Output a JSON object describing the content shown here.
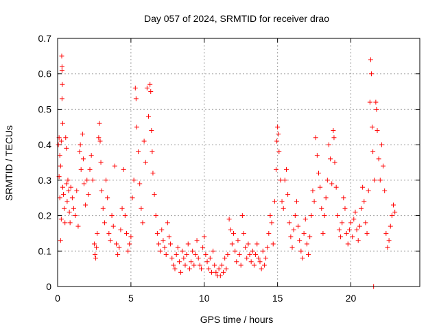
{
  "chart_data": {
    "type": "scatter",
    "title": "Day 057 of 2024, SRMTID for receiver drao",
    "xlabel": "GPS time / hours",
    "ylabel": "SRMTID / TECUs",
    "xlim": [
      0,
      24.7
    ],
    "ylim": [
      0,
      0.7
    ],
    "x_ticks": [
      0,
      5,
      10,
      15,
      20
    ],
    "x_tick_labels": [
      "0",
      "5",
      "10",
      "15",
      "20"
    ],
    "y_ticks": [
      0,
      0.1,
      0.2,
      0.3,
      0.4,
      0.5,
      0.6,
      0.7
    ],
    "y_tick_labels": [
      "0",
      "0.1",
      "0.2",
      "0.3",
      "0.4",
      "0.5",
      "0.6",
      "0.7"
    ],
    "grid": true,
    "marker": "+",
    "color": "#ff0000",
    "series": [
      {
        "name": "SRMTID",
        "points": [
          [
            0.05,
            0.4
          ],
          [
            0.1,
            0.42
          ],
          [
            0.1,
            0.31
          ],
          [
            0.15,
            0.37
          ],
          [
            0.15,
            0.25
          ],
          [
            0.2,
            0.13
          ],
          [
            0.2,
            0.34
          ],
          [
            0.25,
            0.41
          ],
          [
            0.25,
            0.19
          ],
          [
            0.28,
            0.65
          ],
          [
            0.3,
            0.62
          ],
          [
            0.3,
            0.61
          ],
          [
            0.32,
            0.57
          ],
          [
            0.3,
            0.53
          ],
          [
            0.35,
            0.46
          ],
          [
            0.35,
            0.28
          ],
          [
            0.4,
            0.26
          ],
          [
            0.45,
            0.22
          ],
          [
            0.5,
            0.18
          ],
          [
            0.55,
            0.42
          ],
          [
            0.6,
            0.39
          ],
          [
            0.6,
            0.29
          ],
          [
            0.65,
            0.24
          ],
          [
            0.7,
            0.3
          ],
          [
            0.75,
            0.27
          ],
          [
            0.8,
            0.21
          ],
          [
            0.85,
            0.18
          ],
          [
            0.9,
            0.28
          ],
          [
            1.0,
            0.25
          ],
          [
            1.1,
            0.22
          ],
          [
            1.2,
            0.2
          ],
          [
            1.3,
            0.27
          ],
          [
            1.4,
            0.17
          ],
          [
            1.5,
            0.38
          ],
          [
            1.55,
            0.4
          ],
          [
            1.6,
            0.33
          ],
          [
            1.7,
            0.43
          ],
          [
            1.75,
            0.36
          ],
          [
            1.8,
            0.29
          ],
          [
            1.9,
            0.23
          ],
          [
            2.0,
            0.3
          ],
          [
            2.1,
            0.26
          ],
          [
            2.2,
            0.33
          ],
          [
            2.3,
            0.37
          ],
          [
            2.4,
            0.3
          ],
          [
            2.5,
            0.12
          ],
          [
            2.55,
            0.09
          ],
          [
            2.6,
            0.08
          ],
          [
            2.65,
            0.11
          ],
          [
            2.7,
            0.15
          ],
          [
            2.8,
            0.42
          ],
          [
            2.85,
            0.46
          ],
          [
            2.9,
            0.41
          ],
          [
            2.95,
            0.35
          ],
          [
            3.0,
            0.27
          ],
          [
            3.1,
            0.22
          ],
          [
            3.2,
            0.18
          ],
          [
            3.3,
            0.3
          ],
          [
            3.4,
            0.25
          ],
          [
            3.5,
            0.15
          ],
          [
            3.6,
            0.13
          ],
          [
            3.7,
            0.2
          ],
          [
            3.8,
            0.17
          ],
          [
            3.9,
            0.34
          ],
          [
            4.0,
            0.12
          ],
          [
            4.1,
            0.09
          ],
          [
            4.2,
            0.11
          ],
          [
            4.3,
            0.16
          ],
          [
            4.4,
            0.22
          ],
          [
            4.5,
            0.33
          ],
          [
            4.6,
            0.2
          ],
          [
            4.7,
            0.15
          ],
          [
            4.8,
            0.1
          ],
          [
            4.9,
            0.12
          ],
          [
            5.0,
            0.14
          ],
          [
            5.1,
            0.25
          ],
          [
            5.2,
            0.3
          ],
          [
            5.3,
            0.56
          ],
          [
            5.35,
            0.53
          ],
          [
            5.4,
            0.45
          ],
          [
            5.5,
            0.38
          ],
          [
            5.6,
            0.29
          ],
          [
            5.7,
            0.22
          ],
          [
            5.8,
            0.18
          ],
          [
            5.9,
            0.41
          ],
          [
            6.0,
            0.35
          ],
          [
            6.1,
            0.56
          ],
          [
            6.2,
            0.48
          ],
          [
            6.3,
            0.57
          ],
          [
            6.35,
            0.55
          ],
          [
            6.4,
            0.44
          ],
          [
            6.45,
            0.38
          ],
          [
            6.5,
            0.32
          ],
          [
            6.6,
            0.26
          ],
          [
            6.7,
            0.2
          ],
          [
            6.8,
            0.15
          ],
          [
            6.9,
            0.12
          ],
          [
            7.0,
            0.1
          ],
          [
            7.1,
            0.16
          ],
          [
            7.2,
            0.13
          ],
          [
            7.3,
            0.11
          ],
          [
            7.4,
            0.09
          ],
          [
            7.5,
            0.18
          ],
          [
            7.6,
            0.14
          ],
          [
            7.7,
            0.12
          ],
          [
            7.8,
            0.08
          ],
          [
            7.9,
            0.06
          ],
          [
            8.0,
            0.05
          ],
          [
            8.1,
            0.09
          ],
          [
            8.2,
            0.11
          ],
          [
            8.3,
            0.07
          ],
          [
            8.4,
            0.04
          ],
          [
            8.5,
            0.1
          ],
          [
            8.6,
            0.08
          ],
          [
            8.7,
            0.06
          ],
          [
            8.8,
            0.09
          ],
          [
            8.9,
            0.12
          ],
          [
            9.0,
            0.05
          ],
          [
            9.1,
            0.07
          ],
          [
            9.2,
            0.1
          ],
          [
            9.3,
            0.06
          ],
          [
            9.4,
            0.09
          ],
          [
            9.5,
            0.13
          ],
          [
            9.6,
            0.08
          ],
          [
            9.7,
            0.06
          ],
          [
            9.8,
            0.05
          ],
          [
            9.9,
            0.11
          ],
          [
            10.0,
            0.14
          ],
          [
            10.1,
            0.09
          ],
          [
            10.2,
            0.07
          ],
          [
            10.3,
            0.05
          ],
          [
            10.4,
            0.08
          ],
          [
            10.5,
            0.04
          ],
          [
            10.6,
            0.1
          ],
          [
            10.7,
            0.06
          ],
          [
            10.8,
            0.04
          ],
          [
            10.9,
            0.03
          ],
          [
            11.0,
            0.05
          ],
          [
            11.1,
            0.03
          ],
          [
            11.2,
            0.06
          ],
          [
            11.3,
            0.04
          ],
          [
            11.4,
            0.08
          ],
          [
            11.5,
            0.05
          ],
          [
            11.6,
            0.09
          ],
          [
            11.7,
            0.19
          ],
          [
            11.8,
            0.16
          ],
          [
            11.9,
            0.12
          ],
          [
            12.0,
            0.15
          ],
          [
            12.1,
            0.1
          ],
          [
            12.2,
            0.07
          ],
          [
            12.3,
            0.13
          ],
          [
            12.4,
            0.09
          ],
          [
            12.5,
            0.06
          ],
          [
            12.6,
            0.2
          ],
          [
            12.7,
            0.15
          ],
          [
            12.8,
            0.11
          ],
          [
            12.9,
            0.08
          ],
          [
            13.0,
            0.12
          ],
          [
            13.1,
            0.09
          ],
          [
            13.2,
            0.07
          ],
          [
            13.3,
            0.1
          ],
          [
            13.4,
            0.06
          ],
          [
            13.5,
            0.09
          ],
          [
            13.6,
            0.12
          ],
          [
            13.7,
            0.08
          ],
          [
            13.8,
            0.07
          ],
          [
            13.9,
            0.05
          ],
          [
            14.0,
            0.1
          ],
          [
            14.1,
            0.06
          ],
          [
            14.2,
            0.08
          ],
          [
            14.3,
            0.11
          ],
          [
            14.4,
            0.15
          ],
          [
            14.5,
            0.2
          ],
          [
            14.6,
            0.18
          ],
          [
            14.7,
            0.12
          ],
          [
            14.8,
            0.24
          ],
          [
            14.9,
            0.33
          ],
          [
            14.95,
            0.41
          ],
          [
            15.0,
            0.45
          ],
          [
            15.05,
            0.43
          ],
          [
            15.1,
            0.38
          ],
          [
            15.2,
            0.3
          ],
          [
            15.3,
            0.24
          ],
          [
            15.4,
            0.22
          ],
          [
            15.5,
            0.3
          ],
          [
            15.6,
            0.33
          ],
          [
            15.7,
            0.26
          ],
          [
            15.8,
            0.18
          ],
          [
            15.9,
            0.14
          ],
          [
            16.0,
            0.11
          ],
          [
            16.1,
            0.16
          ],
          [
            16.2,
            0.2
          ],
          [
            16.3,
            0.24
          ],
          [
            16.4,
            0.17
          ],
          [
            16.5,
            0.13
          ],
          [
            16.6,
            0.1
          ],
          [
            16.7,
            0.08
          ],
          [
            16.8,
            0.15
          ],
          [
            16.9,
            0.19
          ],
          [
            17.0,
            0.12
          ],
          [
            17.1,
            0.09
          ],
          [
            17.2,
            0.14
          ],
          [
            17.3,
            0.2
          ],
          [
            17.4,
            0.27
          ],
          [
            17.5,
            0.24
          ],
          [
            17.6,
            0.42
          ],
          [
            17.7,
            0.37
          ],
          [
            17.8,
            0.32
          ],
          [
            17.9,
            0.28
          ],
          [
            18.0,
            0.22
          ],
          [
            18.1,
            0.15
          ],
          [
            18.2,
            0.2
          ],
          [
            18.3,
            0.25
          ],
          [
            18.4,
            0.3
          ],
          [
            18.5,
            0.4
          ],
          [
            18.6,
            0.36
          ],
          [
            18.7,
            0.29
          ],
          [
            18.8,
            0.44
          ],
          [
            18.85,
            0.42
          ],
          [
            18.9,
            0.35
          ],
          [
            19.0,
            0.28
          ],
          [
            19.1,
            0.2
          ],
          [
            19.2,
            0.16
          ],
          [
            19.3,
            0.14
          ],
          [
            19.4,
            0.18
          ],
          [
            19.5,
            0.25
          ],
          [
            19.6,
            0.22
          ],
          [
            19.7,
            0.15
          ],
          [
            19.8,
            0.12
          ],
          [
            19.9,
            0.16
          ],
          [
            20.0,
            0.18
          ],
          [
            20.1,
            0.14
          ],
          [
            20.2,
            0.19
          ],
          [
            20.3,
            0.21
          ],
          [
            20.4,
            0.16
          ],
          [
            20.5,
            0.13
          ],
          [
            20.6,
            0.17
          ],
          [
            20.7,
            0.22
          ],
          [
            20.8,
            0.28
          ],
          [
            20.9,
            0.24
          ],
          [
            21.0,
            0.18
          ],
          [
            21.1,
            0.15
          ],
          [
            21.2,
            0.27
          ],
          [
            21.3,
            0.52
          ],
          [
            21.35,
            0.64
          ],
          [
            21.4,
            0.6
          ],
          [
            21.45,
            0.45
          ],
          [
            21.5,
            0.38
          ],
          [
            21.6,
            0.3
          ],
          [
            21.7,
            0.52
          ],
          [
            21.75,
            0.5
          ],
          [
            21.8,
            0.44
          ],
          [
            21.9,
            0.36
          ],
          [
            22.0,
            0.3
          ],
          [
            22.1,
            0.4
          ],
          [
            22.2,
            0.34
          ],
          [
            22.3,
            0.27
          ],
          [
            22.4,
            0.15
          ],
          [
            22.5,
            0.11
          ],
          [
            22.6,
            0.13
          ],
          [
            22.7,
            0.17
          ],
          [
            22.8,
            0.2
          ],
          [
            22.9,
            0.23
          ],
          [
            23.0,
            0.21
          ],
          [
            21.55,
            0.0
          ]
        ]
      }
    ]
  }
}
